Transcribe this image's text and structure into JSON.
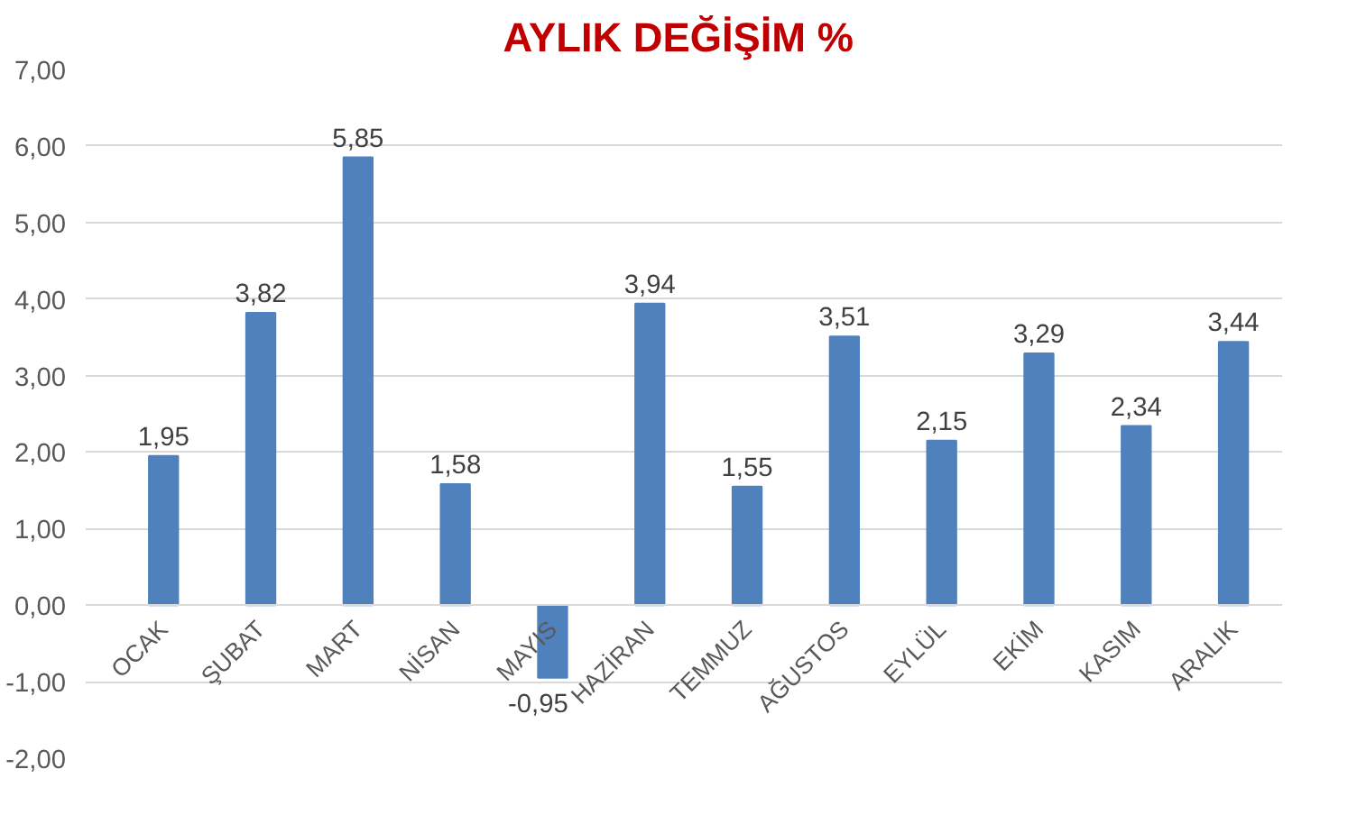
{
  "chart_data": {
    "type": "bar",
    "title": "AYLIK DEĞİŞİM  %",
    "categories": [
      "OCAK",
      "ŞUBAT",
      "MART",
      "NİSAN",
      "MAYIS",
      "HAZİRAN",
      "TEMMUZ",
      "AĞUSTOS",
      "EYLÜL",
      "EKİM",
      "KASIM",
      "ARALIK"
    ],
    "values": [
      1.95,
      3.82,
      5.85,
      1.58,
      -0.95,
      3.94,
      1.55,
      3.51,
      2.15,
      3.29,
      2.34,
      3.44
    ],
    "value_labels": [
      "1,95",
      "3,82",
      "5,85",
      "1,58",
      "-0,95",
      "3,94",
      "1,55",
      "3,51",
      "2,15",
      "3,29",
      "2,34",
      "3,44"
    ],
    "color": "#4f81bd",
    "ylim": [
      -2,
      7
    ],
    "yticks": [
      {
        "value": -2,
        "label": "-2,00"
      },
      {
        "value": -1,
        "label": "-1,00"
      },
      {
        "value": 0,
        "label": "0,00"
      },
      {
        "value": 1,
        "label": "1,00"
      },
      {
        "value": 2,
        "label": "2,00"
      },
      {
        "value": 3,
        "label": "3,00"
      },
      {
        "value": 4,
        "label": "4,00"
      },
      {
        "value": 5,
        "label": "5,00"
      },
      {
        "value": 6,
        "label": "6,00"
      },
      {
        "value": 7,
        "label": "7,00"
      }
    ],
    "grid": "y"
  }
}
